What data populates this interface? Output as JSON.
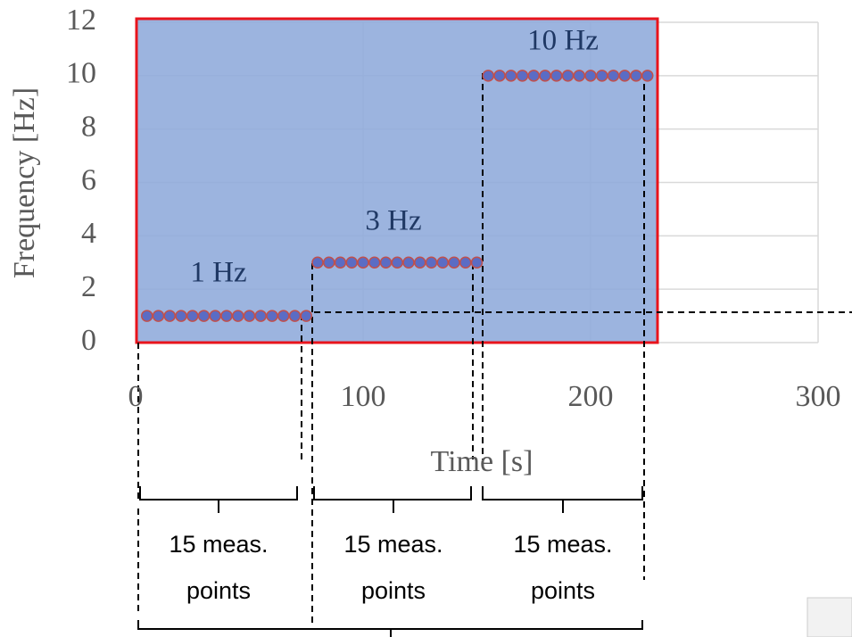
{
  "chart_data": {
    "type": "scatter",
    "x": [
      5,
      10,
      15,
      20,
      25,
      30,
      35,
      40,
      45,
      50,
      55,
      60,
      65,
      70,
      75,
      80,
      85,
      90,
      95,
      100,
      105,
      110,
      115,
      120,
      125,
      130,
      135,
      140,
      145,
      150,
      155,
      160,
      165,
      170,
      175,
      180,
      185,
      190,
      195,
      200,
      205,
      210,
      215,
      220,
      225
    ],
    "values": [
      1,
      1,
      1,
      1,
      1,
      1,
      1,
      1,
      1,
      1,
      1,
      1,
      1,
      1,
      1,
      3,
      3,
      3,
      3,
      3,
      3,
      3,
      3,
      3,
      3,
      3,
      3,
      3,
      3,
      3,
      10,
      10,
      10,
      10,
      10,
      10,
      10,
      10,
      10,
      10,
      10,
      10,
      10,
      10,
      10
    ],
    "color": "#5b6cc4",
    "edge_color": "#c0504d",
    "xlabel": "Time [s]",
    "ylabel": "Frequency [Hz]",
    "xlim": [
      0,
      300
    ],
    "xticks": [
      0,
      100,
      200,
      300
    ],
    "ylim": [
      0,
      12
    ],
    "yticks": [
      0,
      2,
      4,
      6,
      8,
      10,
      12
    ],
    "grid": true,
    "annotations": [
      "1 Hz",
      "3 Hz",
      "10 Hz"
    ],
    "groups": [
      {
        "line1": "15 meas.",
        "line2": "points"
      },
      {
        "line1": "15 meas.",
        "line2": "points"
      },
      {
        "line1": "15 meas.",
        "line2": "points"
      }
    ]
  }
}
